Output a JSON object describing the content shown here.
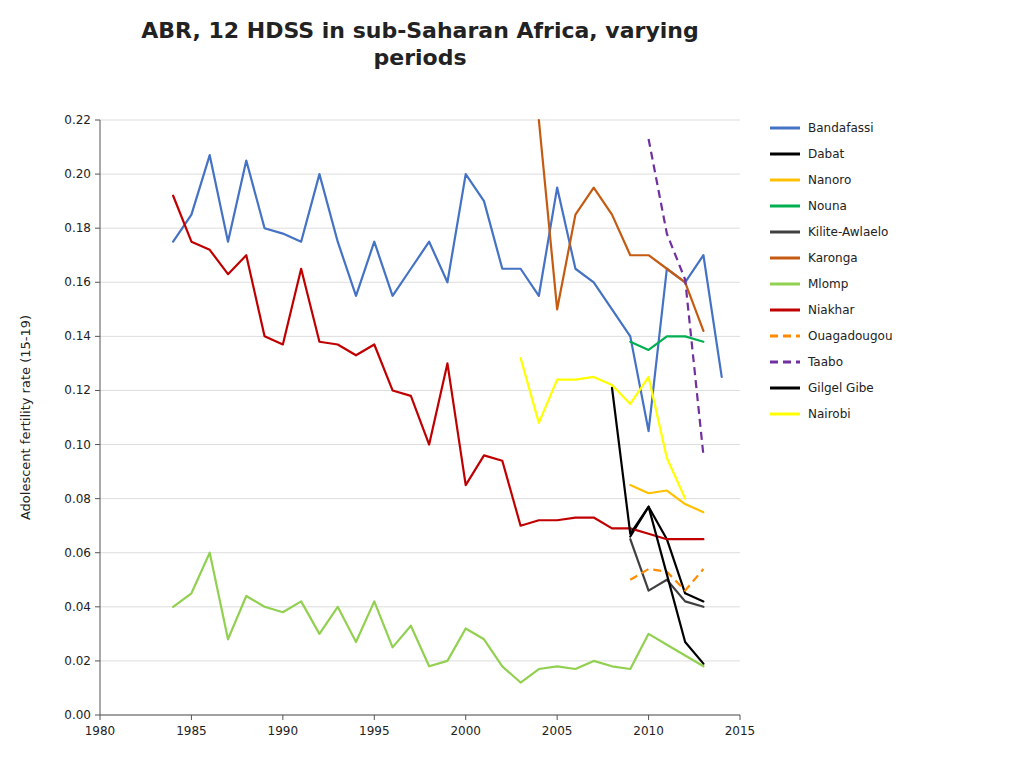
{
  "chart_data": {
    "type": "line",
    "title": "ABR, 12 HDSS in sub-Saharan Africa, varying\nperiods",
    "ylabel": "Adolescent fertility rate (15-19)",
    "xlim": [
      1980,
      2015
    ],
    "ylim": [
      0,
      0.22
    ],
    "xticks": [
      1980,
      1985,
      1990,
      1995,
      2000,
      2005,
      2010,
      2015
    ],
    "yticks": [
      {
        "value": 0,
        "label": "0.00"
      },
      {
        "value": 0.02,
        "label": "0.02"
      },
      {
        "value": 0.04,
        "label": "0.04"
      },
      {
        "value": 0.06,
        "label": "0.06"
      },
      {
        "value": 0.08,
        "label": "0.08"
      },
      {
        "value": 0.1,
        "label": "0.10"
      },
      {
        "value": 0.12,
        "label": "0.12"
      },
      {
        "value": 0.14,
        "label": "0.14"
      },
      {
        "value": 0.16,
        "label": "0.16"
      },
      {
        "value": 0.18,
        "label": "0.18"
      },
      {
        "value": 0.2,
        "label": "0.20"
      },
      {
        "value": 0.22,
        "label": "0.22"
      }
    ],
    "grid": "y",
    "legend": "right",
    "series": [
      {
        "name": "Bandafassi",
        "color": "#4472C4",
        "line_style": "solid",
        "x": [
          1984,
          1985,
          1986,
          1987,
          1988,
          1989,
          1990,
          1991,
          1992,
          1993,
          1994,
          1995,
          1996,
          1997,
          1998,
          1999,
          2000,
          2001,
          2002,
          2003,
          2004,
          2005,
          2006,
          2007,
          2008,
          2009,
          2010,
          2011,
          2012,
          2013,
          2014
        ],
        "values": [
          0.175,
          0.185,
          0.207,
          0.175,
          0.205,
          0.18,
          0.178,
          0.175,
          0.2,
          0.175,
          0.155,
          0.175,
          0.155,
          0.165,
          0.175,
          0.16,
          0.2,
          0.19,
          0.165,
          0.165,
          0.155,
          0.195,
          0.165,
          0.16,
          0.15,
          0.14,
          0.105,
          0.165,
          0.16,
          0.17,
          0.125
        ]
      },
      {
        "name": "Dabat",
        "color": "#000000",
        "line_style": "solid",
        "x": [
          2009,
          2010,
          2011,
          2012,
          2013
        ],
        "values": [
          0.066,
          0.077,
          0.065,
          0.045,
          0.042
        ]
      },
      {
        "name": "Nanoro",
        "color": "#FFC000",
        "line_style": "solid",
        "x": [
          2009,
          2010,
          2011,
          2012,
          2013
        ],
        "values": [
          0.085,
          0.082,
          0.083,
          0.078,
          0.075
        ]
      },
      {
        "name": "Nouna",
        "color": "#00B050",
        "line_style": "solid",
        "x": [
          2009,
          2010,
          2011,
          2012,
          2013
        ],
        "values": [
          0.138,
          0.135,
          0.14,
          0.14,
          0.138
        ]
      },
      {
        "name": "Kilite-Awlaelo",
        "color": "#404040",
        "line_style": "solid",
        "x": [
          2009,
          2010,
          2011,
          2012,
          2013
        ],
        "values": [
          0.065,
          0.046,
          0.05,
          0.042,
          0.04
        ]
      },
      {
        "name": "Karonga",
        "color": "#C55A11",
        "line_style": "solid",
        "x": [
          2004,
          2005,
          2006,
          2007,
          2008,
          2009,
          2010,
          2011,
          2012,
          2013
        ],
        "values": [
          0.22,
          0.15,
          0.185,
          0.195,
          0.185,
          0.17,
          0.17,
          0.165,
          0.16,
          0.142
        ]
      },
      {
        "name": "Mlomp",
        "color": "#92D050",
        "line_style": "solid",
        "x": [
          1984,
          1985,
          1986,
          1987,
          1988,
          1989,
          1990,
          1991,
          1992,
          1993,
          1994,
          1995,
          1996,
          1997,
          1998,
          1999,
          2000,
          2001,
          2002,
          2003,
          2004,
          2005,
          2006,
          2007,
          2008,
          2009,
          2010,
          2011,
          2012,
          2013
        ],
        "values": [
          0.04,
          0.045,
          0.06,
          0.028,
          0.044,
          0.04,
          0.038,
          0.042,
          0.03,
          0.04,
          0.027,
          0.042,
          0.025,
          0.033,
          0.018,
          0.02,
          0.032,
          0.028,
          0.018,
          0.012,
          0.017,
          0.018,
          0.017,
          0.02,
          0.018,
          0.017,
          0.03,
          0.026,
          0.022,
          0.018
        ]
      },
      {
        "name": "Niakhar",
        "color": "#C00000",
        "line_style": "solid",
        "x": [
          1984,
          1985,
          1986,
          1987,
          1988,
          1989,
          1990,
          1991,
          1992,
          1993,
          1994,
          1995,
          1996,
          1997,
          1998,
          1999,
          2000,
          2001,
          2002,
          2003,
          2004,
          2005,
          2006,
          2007,
          2008,
          2009,
          2010,
          2011,
          2012,
          2013
        ],
        "values": [
          0.192,
          0.175,
          0.172,
          0.163,
          0.17,
          0.14,
          0.137,
          0.165,
          0.138,
          0.137,
          0.133,
          0.137,
          0.12,
          0.118,
          0.1,
          0.13,
          0.085,
          0.096,
          0.094,
          0.07,
          0.072,
          0.072,
          0.073,
          0.073,
          0.069,
          0.069,
          0.067,
          0.065,
          0.065,
          0.065
        ]
      },
      {
        "name": "Ouagadougou",
        "color": "#FF8C00",
        "line_style": "dashed",
        "x": [
          2009,
          2010,
          2011,
          2012,
          2013
        ],
        "values": [
          0.05,
          0.054,
          0.053,
          0.046,
          0.054
        ]
      },
      {
        "name": "Taabo",
        "color": "#7030A0",
        "line_style": "dashed",
        "x": [
          2010,
          2011,
          2012,
          2013
        ],
        "values": [
          0.213,
          0.178,
          0.161,
          0.096
        ]
      },
      {
        "name": "Gilgel Gibe",
        "color": "#000000",
        "line_style": "solid",
        "x": [
          2008,
          2009,
          2010,
          2011,
          2012,
          2013
        ],
        "values": [
          0.121,
          0.067,
          0.077,
          0.052,
          0.027,
          0.019
        ]
      },
      {
        "name": "Nairobi",
        "color": "#FFFF00",
        "line_style": "solid",
        "x": [
          2003,
          2004,
          2005,
          2006,
          2007,
          2008,
          2009,
          2010,
          2011,
          2012
        ],
        "values": [
          0.132,
          0.108,
          0.124,
          0.124,
          0.125,
          0.122,
          0.115,
          0.125,
          0.095,
          0.08
        ]
      }
    ]
  }
}
